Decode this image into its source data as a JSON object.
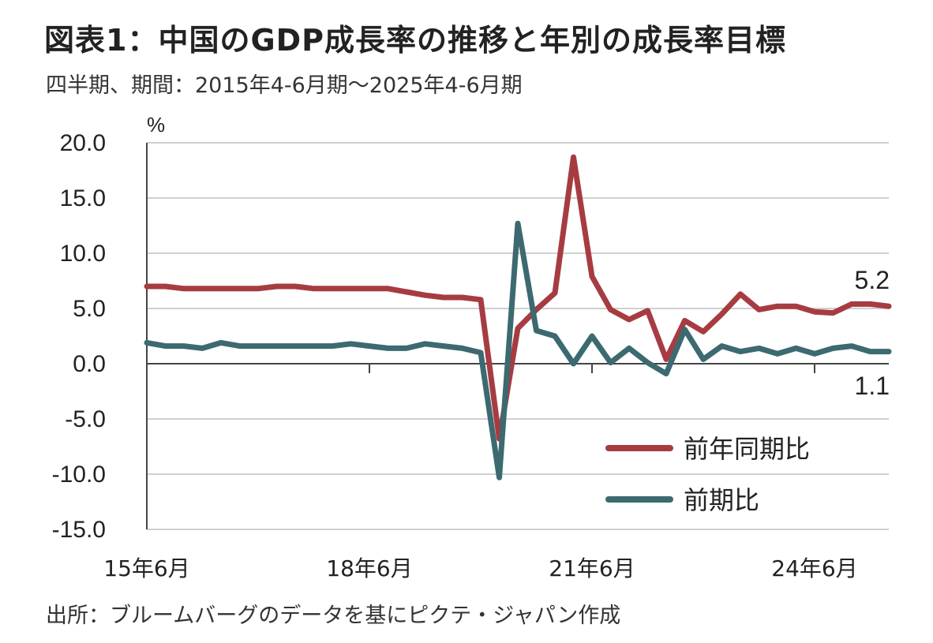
{
  "header": {
    "title": "図表1：中国のGDP成長率の推移と年別の成長率目標",
    "subtitle": "四半期、期間：2015年4-6月期～2025年4-6月期"
  },
  "footer": {
    "source": "出所：ブルームバーグのデータを基にピクテ・ジャパン作成"
  },
  "colors": {
    "yoy": "#a63c42",
    "qoq": "#3c6a70",
    "grid": "#d0d0d0",
    "axis": "#444444"
  },
  "chart_data": {
    "type": "line",
    "unit_label": "%",
    "ylim": [
      -15,
      20
    ],
    "yticks": [
      20,
      15,
      10,
      5,
      0,
      -5,
      -10,
      -15
    ],
    "ytick_labels": [
      "20.0",
      "15.0",
      "10.0",
      "5.0",
      "0.0",
      "-5.0",
      "-10.0",
      "-15.0"
    ],
    "x_tick_labels": [
      {
        "index": 0,
        "label": "15年6月"
      },
      {
        "index": 12,
        "label": "18年6月"
      },
      {
        "index": 24,
        "label": "21年6月"
      },
      {
        "index": 36,
        "label": "24年6月"
      }
    ],
    "grid": "horizontal",
    "legend_position": "bottom-right",
    "series": [
      {
        "name": "前年同期比",
        "key": "yoy",
        "values": [
          7.0,
          7.0,
          6.8,
          6.8,
          6.8,
          6.8,
          6.8,
          7.0,
          7.0,
          6.8,
          6.8,
          6.8,
          6.8,
          6.8,
          6.5,
          6.2,
          6.0,
          6.0,
          5.8,
          -6.8,
          3.2,
          4.9,
          6.4,
          18.7,
          7.9,
          4.9,
          4.0,
          4.8,
          0.4,
          3.9,
          2.9,
          4.5,
          6.3,
          4.9,
          5.2,
          5.2,
          4.7,
          4.6,
          5.4,
          5.4,
          5.2
        ],
        "end_label": "5.2"
      },
      {
        "name": "前期比",
        "key": "qoq",
        "values": [
          1.9,
          1.6,
          1.6,
          1.4,
          1.9,
          1.6,
          1.6,
          1.6,
          1.6,
          1.6,
          1.6,
          1.8,
          1.6,
          1.4,
          1.4,
          1.8,
          1.6,
          1.4,
          1.0,
          -10.3,
          12.7,
          3.0,
          2.5,
          0.0,
          2.5,
          0.1,
          1.4,
          0.1,
          -0.9,
          3.1,
          0.4,
          1.6,
          1.1,
          1.4,
          0.9,
          1.4,
          0.9,
          1.4,
          1.6,
          1.1,
          1.1
        ],
        "end_label": "1.1"
      }
    ]
  }
}
